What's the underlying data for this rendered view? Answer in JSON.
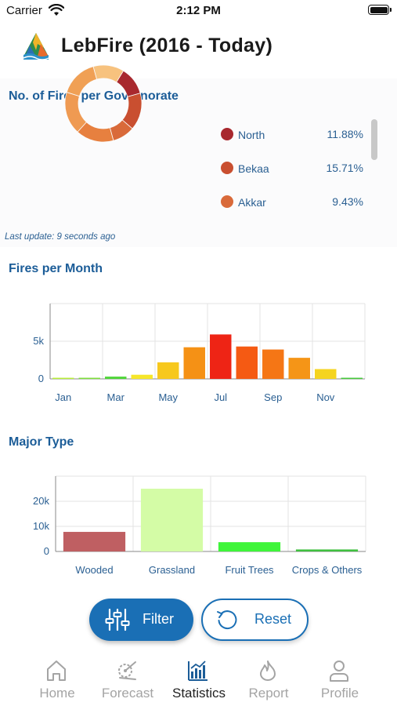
{
  "status_bar": {
    "carrier": "Carrier",
    "time": "2:12 PM"
  },
  "header": {
    "title": "LebFire (2016 - Today)"
  },
  "governorate": {
    "title": "No. of Fires per Governorate",
    "last_update": "Last update: 9 seconds ago",
    "legend": [
      {
        "name": "North",
        "pct": "11.88%",
        "color": "#a8282e"
      },
      {
        "name": "Bekaa",
        "pct": "15.71%",
        "color": "#c94f30"
      },
      {
        "name": "Akkar",
        "pct": "9.43%",
        "color": "#d96a3a"
      }
    ]
  },
  "monthly": {
    "title": "Fires per Month"
  },
  "major_type": {
    "title": "Major Type"
  },
  "buttons": {
    "filter": "Filter",
    "reset": "Reset"
  },
  "tabs": [
    {
      "label": "Home",
      "icon": "home-icon",
      "active": false
    },
    {
      "label": "Forecast",
      "icon": "forecast-icon",
      "active": false
    },
    {
      "label": "Statistics",
      "icon": "statistics-icon",
      "active": true
    },
    {
      "label": "Report",
      "icon": "report-fire-icon",
      "active": false
    },
    {
      "label": "Profile",
      "icon": "profile-icon",
      "active": false
    }
  ],
  "chart_data": [
    {
      "type": "pie",
      "labels": [
        "North",
        "Bekaa",
        "Akkar",
        "",
        "",
        "",
        ""
      ],
      "values": [
        11.88,
        15.71,
        9.43,
        16,
        18,
        16,
        13
      ],
      "colors": [
        "#a8282e",
        "#c94f30",
        "#d96a3a",
        "#e7803f",
        "#ef9a52",
        "#f0a055",
        "#f7c27e"
      ]
    },
    {
      "type": "bar",
      "categories": [
        "Jan",
        "Feb",
        "Mar",
        "Apr",
        "May",
        "Jun",
        "Jul",
        "Aug",
        "Sep",
        "Oct",
        "Nov",
        "Dec"
      ],
      "tick_labels": [
        "Jan",
        "",
        "Mar",
        "",
        "May",
        "",
        "Jul",
        "",
        "Sep",
        "",
        "Nov",
        ""
      ],
      "values": [
        150,
        150,
        300,
        550,
        2200,
        4200,
        5900,
        4300,
        3900,
        2800,
        1300,
        150
      ],
      "colors": [
        "#b8ef3a",
        "#7ee03b",
        "#4fd638",
        "#f6e62a",
        "#f7c81d",
        "#f59115",
        "#ee2415",
        "#f55a13",
        "#f57615",
        "#f59517",
        "#f5d41f",
        "#45c93a"
      ],
      "yticks": [
        0,
        5000
      ],
      "ytick_labels": [
        "0",
        "5k"
      ],
      "ylim": [
        0,
        10000
      ]
    },
    {
      "type": "bar",
      "categories": [
        "Wooded",
        "Grassland",
        "Fruit Trees",
        "Crops & Others"
      ],
      "values": [
        7800,
        25000,
        3700,
        800
      ],
      "colors": [
        "#bf5f62",
        "#d4fca6",
        "#3ff53a",
        "#3fbf3f"
      ],
      "yticks": [
        0,
        10000,
        20000
      ],
      "ytick_labels": [
        "0",
        "10k",
        "20k"
      ],
      "ylim": [
        0,
        30000
      ]
    }
  ]
}
